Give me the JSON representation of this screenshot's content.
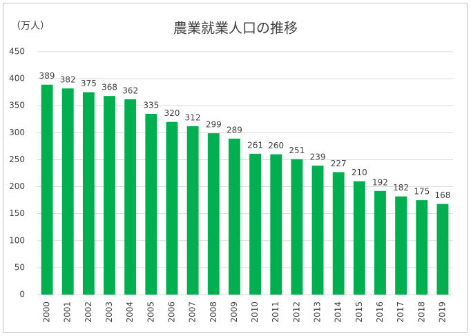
{
  "chart_data": {
    "type": "bar",
    "title": "農業就業人口の推移",
    "unit_label": "（万人）",
    "categories": [
      "2000",
      "2001",
      "2002",
      "2003",
      "2004",
      "2005",
      "2006",
      "2007",
      "2008",
      "2009",
      "2010",
      "2011",
      "2012",
      "2013",
      "2014",
      "2015",
      "2016",
      "2017",
      "2018",
      "2019"
    ],
    "values": [
      389,
      382,
      375,
      368,
      362,
      335,
      320,
      312,
      299,
      289,
      261,
      260,
      251,
      239,
      227,
      210,
      192,
      182,
      175,
      168
    ],
    "color": "#00b050",
    "ylim": [
      0,
      450
    ],
    "yticks": [
      0,
      50,
      100,
      150,
      200,
      250,
      300,
      350,
      400,
      450
    ],
    "grid": true
  }
}
